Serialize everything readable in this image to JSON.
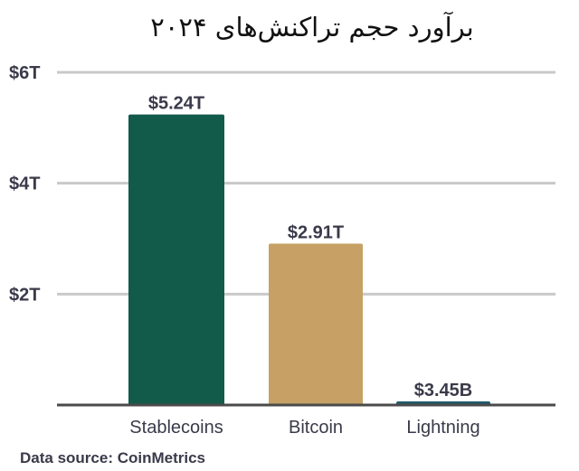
{
  "chart_data": {
    "type": "bar",
    "title": "برآورد حجم تراکنش‌های ۲۰۲۴",
    "categories": [
      "Stablecoins",
      "Bitcoin",
      "Lightning"
    ],
    "values": [
      5.24,
      2.91,
      0.00345
    ],
    "value_labels": [
      "$5.24T",
      "$2.91T",
      "$3.45B"
    ],
    "colors": [
      "#125b4b",
      "#c6a064",
      "#1f5b6b"
    ],
    "ylim": [
      0,
      6
    ],
    "yticks": [
      2,
      4,
      6
    ],
    "ytick_labels": [
      "$2T",
      "$4T",
      "$6T"
    ],
    "grid": true,
    "xlabel": "",
    "ylabel": ""
  },
  "source": "Data source: CoinMetrics"
}
